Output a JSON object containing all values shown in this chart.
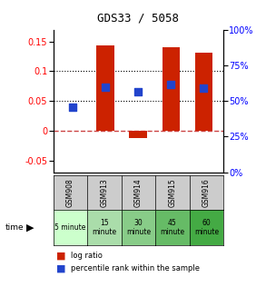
{
  "title": "GDS33 / 5058",
  "samples": [
    "GSM908",
    "GSM913",
    "GSM914",
    "GSM915",
    "GSM916"
  ],
  "time_labels": [
    "5 minute",
    "15\nminute",
    "30\nminute",
    "45\nminute",
    "60\nminute"
  ],
  "time_colors": [
    "#ccffcc",
    "#aaddaa",
    "#88cc88",
    "#66bb66",
    "#44aa44"
  ],
  "log_ratios": [
    0.0,
    0.143,
    -0.012,
    0.14,
    0.132
  ],
  "percentile_ranks": [
    0.04,
    0.073,
    0.065,
    0.078,
    0.072
  ],
  "bar_color": "#cc2200",
  "dot_color": "#2244cc",
  "dashed_line_color": "#cc4444",
  "left_ylim": [
    -0.07,
    0.17
  ],
  "right_ylim": [
    0,
    100
  ],
  "left_yticks": [
    -0.05,
    0.0,
    0.05,
    0.1,
    0.15
  ],
  "right_yticks": [
    0,
    25,
    50,
    75,
    100
  ],
  "dotted_lines": [
    0.05,
    0.1
  ],
  "bar_width": 0.55,
  "dot_size": 38,
  "sample_row_color": "#cccccc"
}
